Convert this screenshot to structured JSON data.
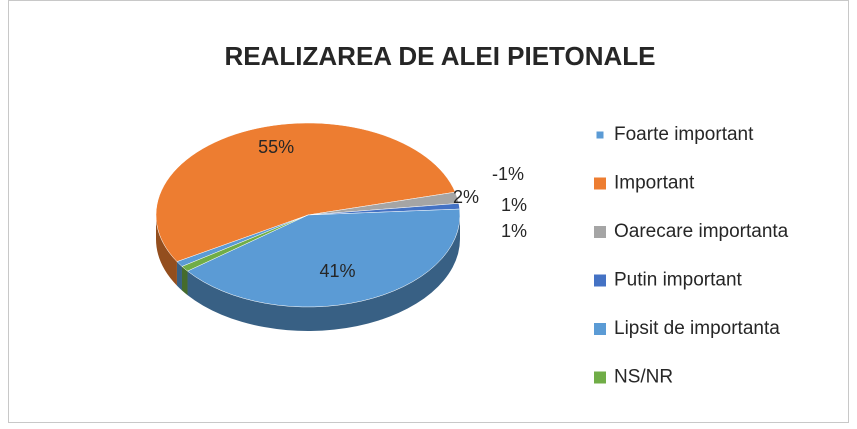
{
  "chart_data": {
    "type": "pie",
    "title": "REALIZAREA DE ALEI PIETONALE",
    "categories": [
      "Foarte important",
      "Important",
      "Oarecare importanta",
      "Putin important",
      "Lipsit de importanta",
      "NS/NR"
    ],
    "values": [
      -1,
      55,
      2,
      1,
      41,
      1
    ],
    "value_labels": [
      "-1%",
      "55%",
      "2%",
      "1%",
      "41%",
      "1%"
    ],
    "colors": [
      "#5b9bd5",
      "#ed7d31",
      "#a5a5a5",
      "#4472c4",
      "#5b9bd5",
      "#70ad47"
    ],
    "legend": "right"
  }
}
